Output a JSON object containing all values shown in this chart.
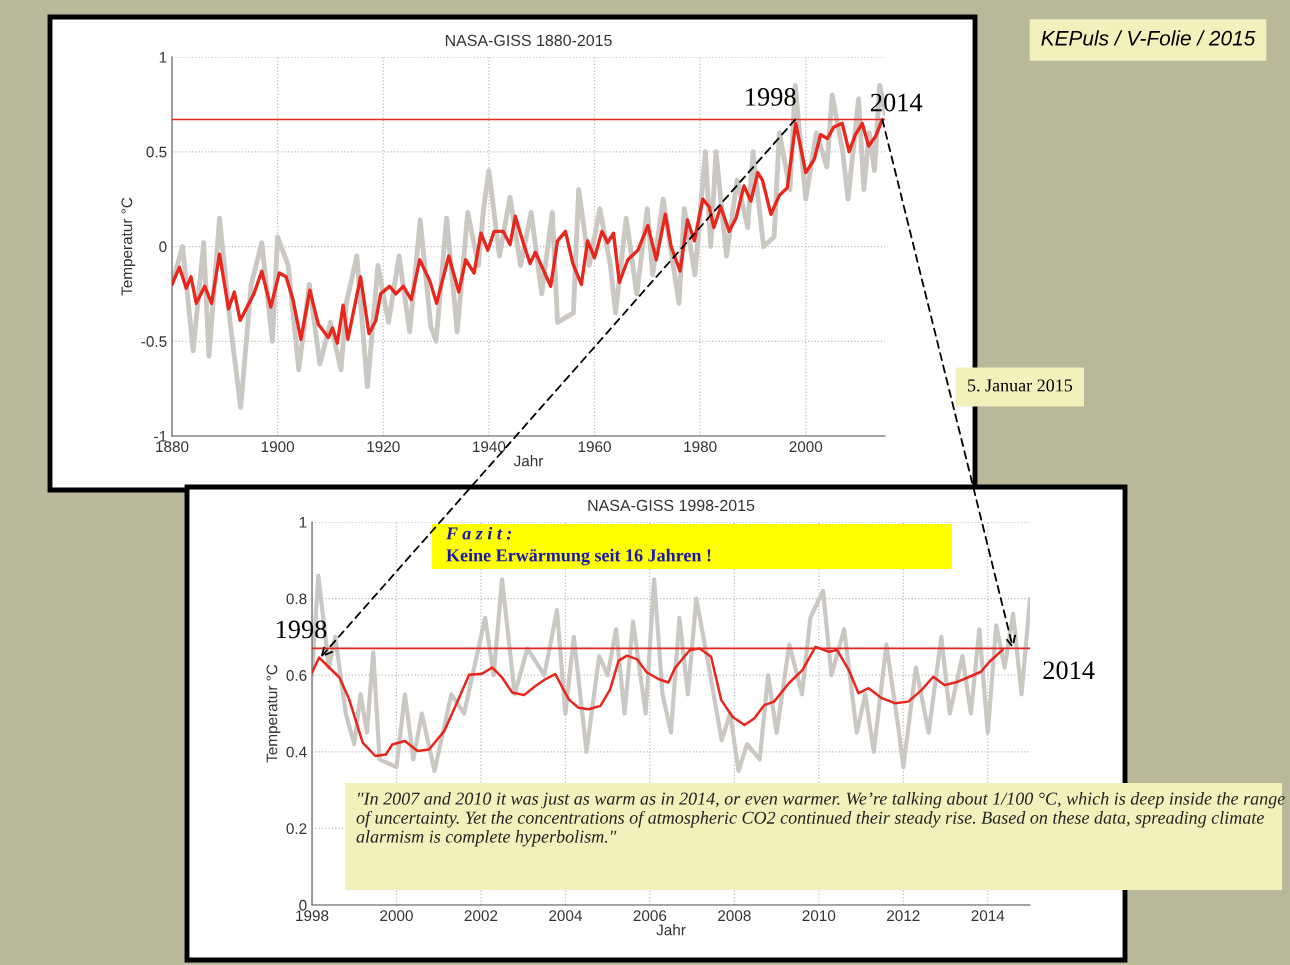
{
  "chart_data": [
    {
      "type": "line",
      "title": "NASA-GISS 1880-2015",
      "xlabel": "Jahr",
      "ylabel": "Temperatur °C",
      "xlim": [
        1880,
        2015
      ],
      "xticks": [
        1880,
        1900,
        1920,
        1940,
        1960,
        1980,
        2000
      ],
      "ylim": [
        -1,
        1
      ],
      "yticks": [
        -1,
        -0.5,
        0,
        0.5,
        1
      ],
      "grid": true,
      "legend": false,
      "series": [
        {
          "color": "#cbc7c2",
          "x": [
            1880,
            1882,
            1884,
            1886,
            1887,
            1889,
            1891,
            1893,
            1895,
            1897,
            1899,
            1900,
            1902,
            1904,
            1906,
            1908,
            1910,
            1912,
            1913,
            1915,
            1917,
            1919,
            1921,
            1923,
            1925,
            1927,
            1929,
            1930,
            1932,
            1934,
            1936,
            1938,
            1939,
            1940,
            1942,
            1944,
            1946,
            1948,
            1950,
            1952,
            1953,
            1956,
            1957,
            1959,
            1961,
            1963,
            1964,
            1966,
            1968,
            1970,
            1971,
            1973,
            1976,
            1977,
            1979,
            1981,
            1982,
            1983,
            1985,
            1987,
            1989,
            1990,
            1992,
            1994,
            1995,
            1997,
            1998,
            2000,
            2002,
            2004,
            2005,
            2007,
            2008,
            2010,
            2011,
            2012,
            2013,
            2014,
            2015
          ],
          "values": [
            -0.2,
            0.0,
            -0.55,
            0.02,
            -0.58,
            0.15,
            -0.4,
            -0.85,
            -0.2,
            0.02,
            -0.5,
            0.05,
            -0.1,
            -0.65,
            -0.2,
            -0.62,
            -0.4,
            -0.65,
            -0.3,
            -0.05,
            -0.74,
            -0.1,
            -0.4,
            -0.05,
            -0.45,
            0.14,
            -0.42,
            -0.5,
            0.15,
            -0.45,
            0.18,
            -0.1,
            0.2,
            0.4,
            -0.05,
            0.26,
            -0.1,
            0.18,
            -0.25,
            0.18,
            -0.4,
            -0.35,
            0.3,
            -0.1,
            0.2,
            -0.1,
            -0.35,
            0.15,
            -0.25,
            0.2,
            -0.15,
            0.25,
            -0.3,
            0.2,
            -0.15,
            0.5,
            0.0,
            0.5,
            -0.05,
            0.35,
            0.1,
            0.5,
            0.0,
            0.05,
            0.6,
            0.3,
            0.85,
            0.25,
            0.6,
            0.42,
            0.8,
            0.5,
            0.25,
            0.78,
            0.3,
            0.6,
            0.4,
            0.85,
            0.7
          ]
        },
        {
          "color": "#e8261c",
          "x": [
            1880,
            1881.4,
            1882.7,
            1883.6,
            1884.6,
            1886.2,
            1887.5,
            1889,
            1890.7,
            1891.8,
            1892.9,
            1894.2,
            1895.5,
            1897,
            1898.7,
            1900.3,
            1901.6,
            1902.9,
            1904.4,
            1906.1,
            1907.7,
            1909.6,
            1910.4,
            1911.3,
            1912.4,
            1913.3,
            1915.7,
            1917.3,
            1918.6,
            1919.5,
            1921.2,
            1922.4,
            1923.8,
            1925.3,
            1926.9,
            1928.8,
            1930.1,
            1932.4,
            1934.3,
            1935.6,
            1937.2,
            1938.5,
            1939.8,
            1941,
            1942.7,
            1944,
            1945,
            1946.5,
            1947.8,
            1948.8,
            1951.7,
            1953,
            1954.5,
            1955.9,
            1957.5,
            1958.7,
            1960,
            1961.4,
            1962.5,
            1963.6,
            1964.7,
            1966.3,
            1968.2,
            1970.1,
            1971.7,
            1973.4,
            1974.5,
            1976.2,
            1977.6,
            1978.9,
            1980.5,
            1981.7,
            1982.6,
            1983.9,
            1985.5,
            1986.8,
            1988.3,
            1989.6,
            1990.9,
            1991.8,
            1993.4,
            1995,
            1996.5,
            1998.1,
            2000,
            2001.6,
            2002.8,
            2004.1,
            2005.3,
            2006.9,
            2008.2,
            2009.4,
            2010.7,
            2011.9,
            2013.2,
            2014.5
          ],
          "values": [
            -0.2,
            -0.11,
            -0.22,
            -0.16,
            -0.3,
            -0.21,
            -0.3,
            -0.04,
            -0.33,
            -0.24,
            -0.39,
            -0.32,
            -0.25,
            -0.13,
            -0.32,
            -0.14,
            -0.16,
            -0.28,
            -0.49,
            -0.23,
            -0.41,
            -0.48,
            -0.43,
            -0.51,
            -0.31,
            -0.49,
            -0.16,
            -0.46,
            -0.39,
            -0.25,
            -0.21,
            -0.25,
            -0.21,
            -0.28,
            -0.07,
            -0.18,
            -0.3,
            -0.05,
            -0.24,
            -0.07,
            -0.14,
            0.07,
            -0.02,
            0.08,
            0.08,
            0.01,
            0.16,
            0.02,
            -0.09,
            -0.03,
            -0.21,
            0.03,
            0.08,
            -0.09,
            -0.2,
            0.03,
            -0.06,
            0.08,
            0.02,
            0.07,
            -0.19,
            -0.07,
            -0.02,
            0.11,
            -0.07,
            0.17,
            0.0,
            -0.13,
            0.14,
            0.03,
            0.25,
            0.21,
            0.1,
            0.21,
            0.08,
            0.15,
            0.32,
            0.24,
            0.39,
            0.35,
            0.17,
            0.27,
            0.31,
            0.65,
            0.39,
            0.46,
            0.59,
            0.57,
            0.63,
            0.65,
            0.5,
            0.59,
            0.65,
            0.53,
            0.58,
            0.67
          ]
        }
      ],
      "ref_lines": [
        {
          "axis": "y",
          "value": 0.67,
          "color": "#e8261c"
        }
      ],
      "annotations": [
        {
          "text": "1998",
          "x": 1998,
          "y": 0.67
        },
        {
          "text": "2014",
          "x": 2014.5,
          "y": 0.67
        },
        "5. Januar 2015",
        "KEPuls / V-Folie / 2015"
      ]
    },
    {
      "type": "line",
      "title": "NASA-GISS 1998-2015",
      "xlabel": "Jahr",
      "ylabel": "Temperatur °C",
      "xlim": [
        1998,
        2015
      ],
      "xticks": [
        1998,
        2000,
        2002,
        2004,
        2006,
        2008,
        2010,
        2012,
        2014
      ],
      "ylim": [
        0,
        1
      ],
      "yticks": [
        0,
        0.2,
        0.4,
        0.6,
        0.8,
        1
      ],
      "grid": true,
      "legend": false,
      "series": [
        {
          "color": "#cbc7c2",
          "x": [
            1998,
            1998.15,
            1998.4,
            1998.55,
            1998.8,
            1999,
            1999.15,
            1999.3,
            1999.45,
            1999.6,
            2000,
            2000.2,
            2000.4,
            2000.6,
            2000.9,
            2001.3,
            2001.6,
            2002.1,
            2002.3,
            2002.5,
            2002.8,
            2003.1,
            2003.5,
            2003.8,
            2004,
            2004.2,
            2004.5,
            2004.8,
            2005,
            2005.2,
            2005.4,
            2005.6,
            2005.9,
            2006.1,
            2006.3,
            2006.5,
            2006.7,
            2006.9,
            2007.1,
            2007.4,
            2007.7,
            2007.9,
            2008.1,
            2008.3,
            2008.6,
            2008.8,
            2009,
            2009.3,
            2009.6,
            2009.8,
            2010.1,
            2010.3,
            2010.6,
            2010.9,
            2011.1,
            2011.3,
            2011.6,
            2011.9,
            2012,
            2012.3,
            2012.6,
            2012.9,
            2013.1,
            2013.4,
            2013.6,
            2013.8,
            2014,
            2014.2,
            2014.4,
            2014.6,
            2014.8,
            2015
          ],
          "values": [
            0.6,
            0.86,
            0.62,
            0.7,
            0.5,
            0.42,
            0.55,
            0.45,
            0.66,
            0.38,
            0.36,
            0.55,
            0.38,
            0.5,
            0.35,
            0.55,
            0.5,
            0.75,
            0.6,
            0.85,
            0.55,
            0.67,
            0.6,
            0.77,
            0.5,
            0.7,
            0.4,
            0.65,
            0.6,
            0.72,
            0.5,
            0.74,
            0.5,
            0.85,
            0.55,
            0.45,
            0.75,
            0.55,
            0.8,
            0.62,
            0.43,
            0.5,
            0.35,
            0.42,
            0.38,
            0.6,
            0.45,
            0.68,
            0.55,
            0.75,
            0.82,
            0.6,
            0.72,
            0.45,
            0.55,
            0.4,
            0.68,
            0.45,
            0.36,
            0.62,
            0.45,
            0.7,
            0.5,
            0.65,
            0.5,
            0.72,
            0.45,
            0.73,
            0.62,
            0.76,
            0.55,
            0.8
          ]
        },
        {
          "color": "#e8261c",
          "x": [
            1998,
            1998.17,
            1998.37,
            1998.65,
            1998.88,
            1999.2,
            1999.5,
            1999.75,
            1999.9,
            2000.2,
            2000.5,
            2000.77,
            2001.13,
            2001.4,
            2001.72,
            2002.03,
            2002.27,
            2002.5,
            2002.74,
            2003.02,
            2003.29,
            2003.53,
            2003.76,
            2004.08,
            2004.31,
            2004.55,
            2004.83,
            2005.06,
            2005.26,
            2005.46,
            2005.69,
            2005.93,
            2006.2,
            2006.44,
            2006.59,
            2006.94,
            2007.18,
            2007.45,
            2007.69,
            2007.96,
            2008.24,
            2008.47,
            2008.71,
            2008.94,
            2009.29,
            2009.61,
            2009.92,
            2010.24,
            2010.43,
            2010.71,
            2010.94,
            2011.18,
            2011.49,
            2011.8,
            2012.12,
            2012.43,
            2012.71,
            2012.98,
            2013.29,
            2013.57,
            2013.84,
            2014.04,
            2014.35
          ],
          "values": [
            0.607,
            0.646,
            0.624,
            0.594,
            0.537,
            0.424,
            0.389,
            0.393,
            0.419,
            0.428,
            0.402,
            0.406,
            0.454,
            0.52,
            0.601,
            0.604,
            0.62,
            0.594,
            0.555,
            0.548,
            0.572,
            0.59,
            0.603,
            0.537,
            0.515,
            0.511,
            0.52,
            0.563,
            0.638,
            0.651,
            0.642,
            0.607,
            0.59,
            0.581,
            0.618,
            0.665,
            0.67,
            0.648,
            0.535,
            0.491,
            0.47,
            0.487,
            0.522,
            0.531,
            0.579,
            0.613,
            0.674,
            0.661,
            0.666,
            0.613,
            0.553,
            0.566,
            0.54,
            0.527,
            0.531,
            0.561,
            0.596,
            0.574,
            0.583,
            0.596,
            0.609,
            0.635,
            0.666
          ]
        }
      ],
      "ref_lines": [
        {
          "axis": "y",
          "value": 0.67,
          "color": "#e8261c"
        }
      ],
      "annotations": [
        {
          "text": "1998",
          "x": 1998.2,
          "y": 0.646
        },
        {
          "text": "2014",
          "x": 2014.6,
          "y": 0.67
        },
        "F a z i t :",
        "Keine Erwärmung seit 16 Jahren !",
        "\"In 2007 and 2010 it was just as warm as in 2014, or even warmer. We’re talking about 1/100 °C, which is deep inside the range of uncertainty. Yet the concentrations of atmospheric CO2 continued their steady rise. Based on these data, spreading climate alarmism is complete hyperbolism.\""
      ]
    }
  ]
}
